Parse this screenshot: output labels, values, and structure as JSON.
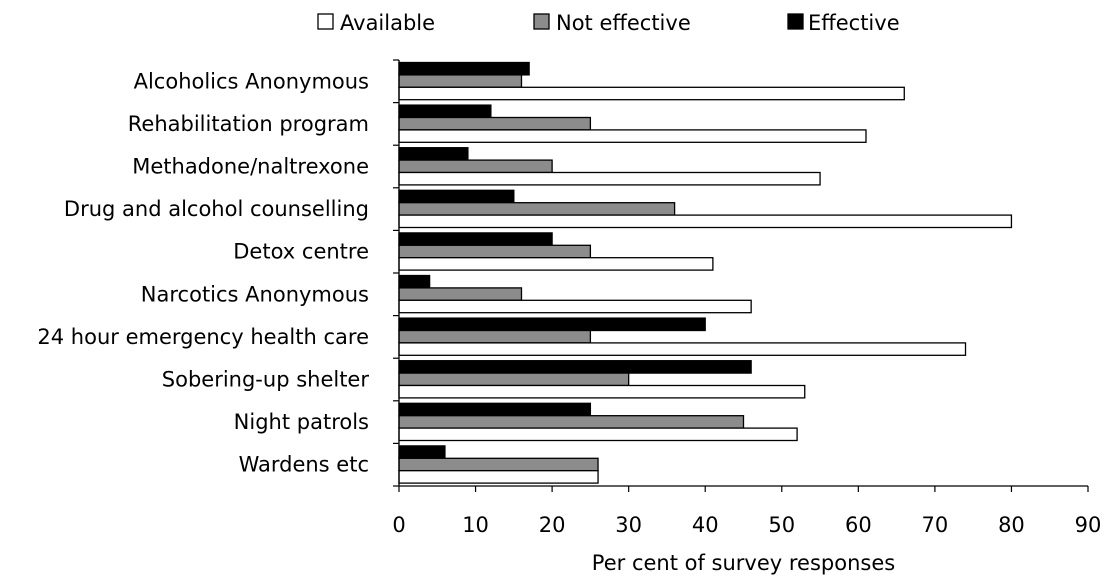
{
  "chart_data": {
    "type": "bar",
    "orientation": "horizontal",
    "categories": [
      "Alcoholics Anonymous",
      "Rehabilitation program",
      "Methadone/naltrexone",
      "Drug and alcohol counselling",
      "Detox centre",
      "Narcotics Anonymous",
      "24 hour emergency health care",
      "Sobering-up shelter",
      "Night patrols",
      "Wardens etc"
    ],
    "series": [
      {
        "name": "Effective",
        "color": "#000000",
        "values": [
          17,
          12,
          9,
          15,
          20,
          4,
          40,
          46,
          25,
          6
        ]
      },
      {
        "name": "Not effective",
        "color": "#8c8c8c",
        "values": [
          16,
          25,
          20,
          36,
          25,
          16,
          25,
          30,
          45,
          26
        ]
      },
      {
        "name": "Available",
        "color": "#ffffff",
        "values": [
          66,
          61,
          55,
          80,
          41,
          46,
          74,
          53,
          52,
          26
        ]
      }
    ],
    "legend_order": [
      "Available",
      "Not effective",
      "Effective"
    ],
    "legend_position": "top",
    "xlabel": "Per cent of survey responses",
    "ylabel": "",
    "title": "",
    "xlim": [
      0,
      90
    ],
    "xticks": [
      0,
      10,
      20,
      30,
      40,
      50,
      60,
      70,
      80,
      90
    ],
    "grid": false
  }
}
